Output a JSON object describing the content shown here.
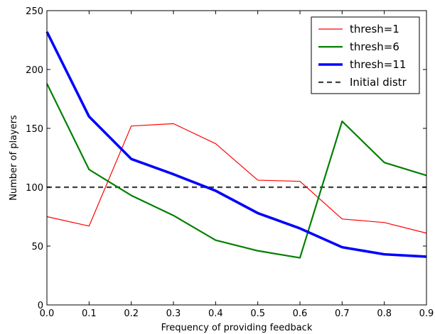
{
  "chart_data": {
    "type": "line",
    "xlabel": "Frequency of providing feedback",
    "ylabel": "Number of players",
    "xlim": [
      0.0,
      0.9
    ],
    "ylim": [
      0,
      250
    ],
    "x_ticks": [
      "0.0",
      "0.1",
      "0.2",
      "0.3",
      "0.4",
      "0.5",
      "0.6",
      "0.7",
      "0.8",
      "0.9"
    ],
    "y_ticks": [
      "0",
      "50",
      "100",
      "150",
      "200",
      "250"
    ],
    "x_tick_values": [
      0.0,
      0.1,
      0.2,
      0.3,
      0.4,
      0.5,
      0.6,
      0.7,
      0.8,
      0.9
    ],
    "y_tick_values": [
      0,
      50,
      100,
      150,
      200,
      250
    ],
    "grid": false,
    "legend_position": "top-right",
    "x": [
      0.0,
      0.1,
      0.2,
      0.3,
      0.4,
      0.5,
      0.6,
      0.7,
      0.8,
      0.9
    ],
    "series": [
      {
        "name": "thresh=1",
        "color": "#ff0000",
        "style": "solid",
        "weight": "thin",
        "values": [
          75,
          67,
          152,
          154,
          137,
          106,
          105,
          73,
          70,
          61
        ]
      },
      {
        "name": "thresh=6",
        "color": "#008000",
        "style": "solid",
        "weight": "medium",
        "values": [
          188,
          115,
          93,
          76,
          55,
          46,
          40,
          156,
          121,
          110
        ]
      },
      {
        "name": "thresh=11",
        "color": "#0000ff",
        "style": "solid",
        "weight": "thick",
        "values": [
          232,
          160,
          124,
          111,
          97,
          78,
          65,
          49,
          43,
          41
        ]
      },
      {
        "name": "Initial distr",
        "color": "#404040",
        "style": "dashed",
        "weight": "medium",
        "values": [
          100,
          100,
          100,
          100,
          100,
          100,
          100,
          100,
          100,
          100
        ]
      }
    ]
  }
}
